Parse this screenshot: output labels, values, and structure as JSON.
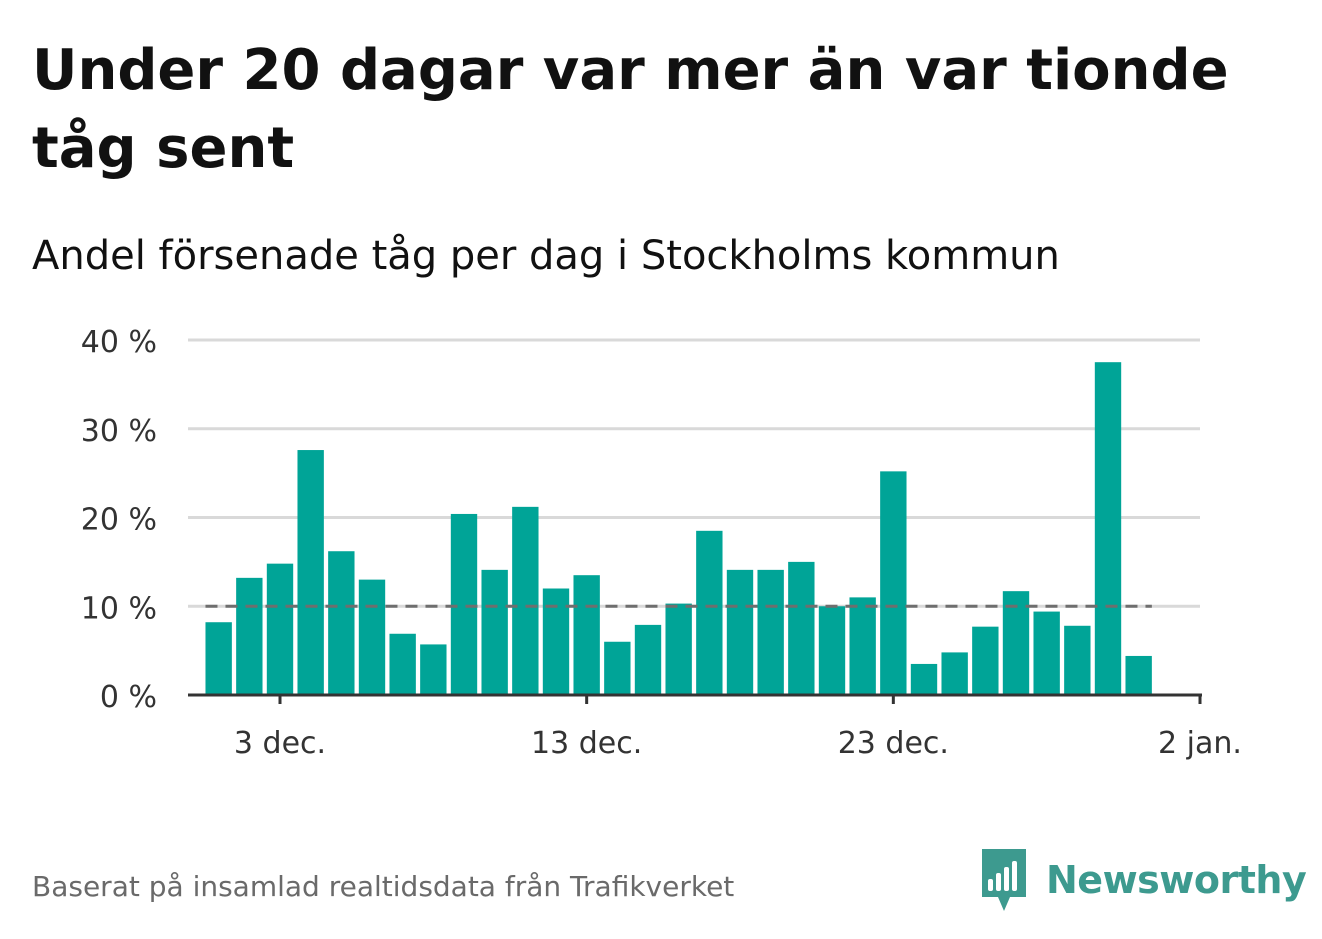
{
  "title": "Under 20 dagar var mer än var tionde tåg sent",
  "subtitle": "Andel försenade tåg per dag i Stockholms kommun",
  "source": "Baserat på insamlad realtidsdata från Trafikverket",
  "brand": {
    "name": "Newsworthy",
    "icon": "bar-chart-speech-bubble-icon",
    "color": "#3d9a8f"
  },
  "colors": {
    "bar": "#00a497",
    "reference_line": "#6e6e6e",
    "grid": "#d9d9d9",
    "axis": "#333333"
  },
  "chart_data": {
    "type": "bar",
    "y_unit": "%",
    "ylim": [
      0,
      40
    ],
    "y_ticks": [
      {
        "value": 0,
        "label": "0 %"
      },
      {
        "value": 10,
        "label": "10 %"
      },
      {
        "value": 20,
        "label": "20 %"
      },
      {
        "value": 30,
        "label": "30 %"
      },
      {
        "value": 40,
        "label": "40 %"
      }
    ],
    "x_ticks": [
      {
        "date": "2022-12-03",
        "label": "3 dec."
      },
      {
        "date": "2022-12-13",
        "label": "13 dec."
      },
      {
        "date": "2022-12-23",
        "label": "23 dec."
      },
      {
        "date": "2023-01-02",
        "label": "2 jan."
      }
    ],
    "x_range": [
      "2022-11-30",
      "2023-01-02"
    ],
    "reference_line": {
      "value": 10,
      "style": "dashed"
    },
    "grid": true,
    "series": [
      {
        "points": [
          {
            "date": "2022-12-01",
            "value": 8.2
          },
          {
            "date": "2022-12-02",
            "value": 13.2
          },
          {
            "date": "2022-12-03",
            "value": 14.8
          },
          {
            "date": "2022-12-04",
            "value": 27.6
          },
          {
            "date": "2022-12-05",
            "value": 16.2
          },
          {
            "date": "2022-12-06",
            "value": 13.0
          },
          {
            "date": "2022-12-07",
            "value": 6.9
          },
          {
            "date": "2022-12-08",
            "value": 5.7
          },
          {
            "date": "2022-12-09",
            "value": 20.4
          },
          {
            "date": "2022-12-10",
            "value": 14.1
          },
          {
            "date": "2022-12-11",
            "value": 21.2
          },
          {
            "date": "2022-12-12",
            "value": 12.0
          },
          {
            "date": "2022-12-13",
            "value": 13.5
          },
          {
            "date": "2022-12-14",
            "value": 6.0
          },
          {
            "date": "2022-12-15",
            "value": 7.9
          },
          {
            "date": "2022-12-16",
            "value": 10.3
          },
          {
            "date": "2022-12-17",
            "value": 18.5
          },
          {
            "date": "2022-12-18",
            "value": 14.1
          },
          {
            "date": "2022-12-19",
            "value": 14.1
          },
          {
            "date": "2022-12-20",
            "value": 15.0
          },
          {
            "date": "2022-12-21",
            "value": 10.0
          },
          {
            "date": "2022-12-22",
            "value": 11.0
          },
          {
            "date": "2022-12-23",
            "value": 25.2
          },
          {
            "date": "2022-12-24",
            "value": 3.5
          },
          {
            "date": "2022-12-25",
            "value": 4.8
          },
          {
            "date": "2022-12-26",
            "value": 7.7
          },
          {
            "date": "2022-12-27",
            "value": 11.7
          },
          {
            "date": "2022-12-28",
            "value": 9.4
          },
          {
            "date": "2022-12-29",
            "value": 7.8
          },
          {
            "date": "2022-12-30",
            "value": 37.5
          },
          {
            "date": "2022-12-31",
            "value": 4.4
          }
        ]
      }
    ]
  }
}
